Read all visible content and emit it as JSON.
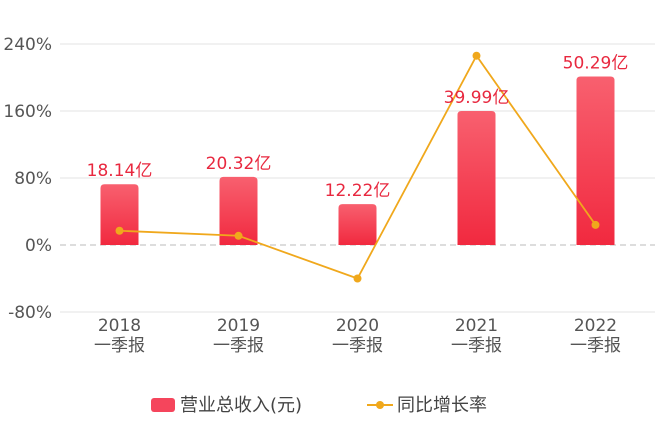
{
  "chart_data": {
    "type": "bar",
    "categories": [
      [
        "2018",
        "一季报"
      ],
      [
        "2019",
        "一季报"
      ],
      [
        "2020",
        "一季报"
      ],
      [
        "2021",
        "一季报"
      ],
      [
        "2022",
        "一季报"
      ]
    ],
    "series": [
      {
        "name": "营业总收入(元)",
        "type": "bar",
        "values": [
          18.14,
          20.32,
          12.22,
          39.99,
          50.29
        ],
        "data_labels": [
          "18.14亿",
          "20.32亿",
          "12.22亿",
          "39.99亿",
          "50.29亿"
        ],
        "color": "#f5455c"
      },
      {
        "name": "同比增长率",
        "type": "line",
        "values": [
          17,
          11,
          -40,
          226,
          24
        ],
        "color": "#f0a81c"
      }
    ],
    "y_axis": {
      "ticks": [
        "240%",
        "160%",
        "80%",
        "0%",
        "-80%"
      ],
      "tick_values": [
        240,
        160,
        80,
        0,
        -80
      ],
      "ylim": [
        -80,
        240
      ]
    },
    "bar_axis_max": 60,
    "grid": true,
    "legend": "bottom-center"
  }
}
